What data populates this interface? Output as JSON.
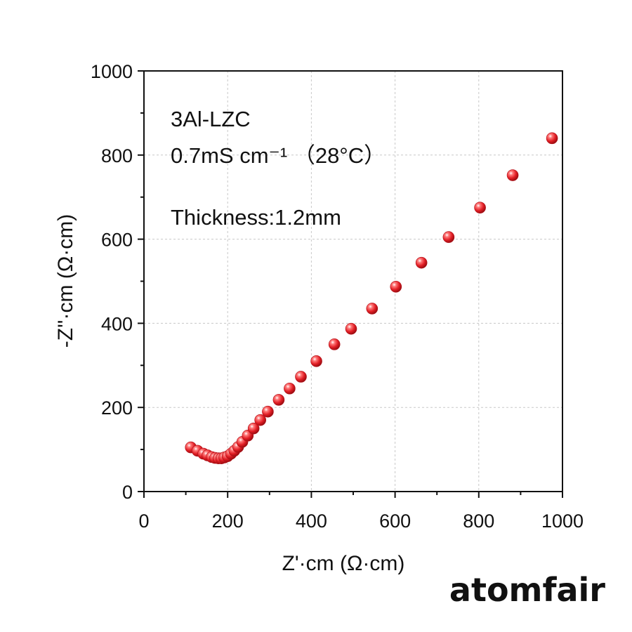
{
  "chart_data": {
    "type": "scatter",
    "xlabel": "Z'·cm (Ω·cm)",
    "ylabel": "-Z''·cm (Ω·cm)",
    "xlim": [
      0,
      1000
    ],
    "ylim": [
      0,
      1000
    ],
    "x_ticks": [
      "0",
      "200",
      "400",
      "600",
      "800",
      "1000"
    ],
    "y_ticks": [
      "0",
      "200",
      "400",
      "600",
      "800",
      "1000"
    ],
    "grid": true,
    "marker_color": "#e8202a",
    "annotations": [
      "3Al-LZC",
      "0.7mS cm⁻¹ （28°C）",
      "Thickness:1.2mm"
    ],
    "series": [
      {
        "points": [
          [
            112,
            105
          ],
          [
            128,
            97
          ],
          [
            142,
            90
          ],
          [
            152,
            86
          ],
          [
            162,
            82
          ],
          [
            170,
            80
          ],
          [
            178,
            79
          ],
          [
            185,
            79
          ],
          [
            192,
            81
          ],
          [
            200,
            84
          ],
          [
            208,
            90
          ],
          [
            216,
            97
          ],
          [
            225,
            106
          ],
          [
            235,
            118
          ],
          [
            248,
            133
          ],
          [
            262,
            150
          ],
          [
            278,
            170
          ],
          [
            296,
            190
          ],
          [
            322,
            218
          ],
          [
            348,
            245
          ],
          [
            375,
            273
          ],
          [
            412,
            310
          ],
          [
            455,
            350
          ],
          [
            495,
            387
          ],
          [
            545,
            435
          ],
          [
            602,
            487
          ],
          [
            663,
            544
          ],
          [
            728,
            605
          ],
          [
            803,
            675
          ],
          [
            881,
            752
          ],
          [
            975,
            840
          ]
        ]
      }
    ]
  },
  "brand": {
    "text": "atomfair"
  }
}
